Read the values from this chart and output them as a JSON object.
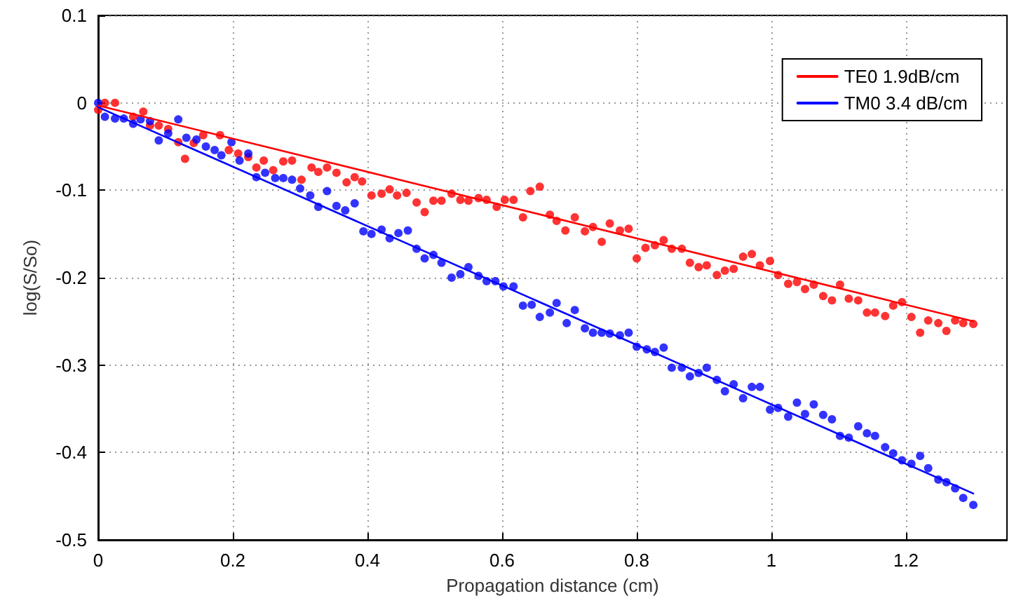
{
  "chart_data": {
    "type": "scatter",
    "xlabel": "Propagation distance (cm)",
    "ylabel": "log(S/So)",
    "xlim": [
      0,
      1.35
    ],
    "xticks": [
      0,
      0.2,
      0.4,
      0.6,
      0.8,
      1,
      1.2
    ],
    "ylim": [
      -0.5,
      0.1
    ],
    "yticks": [
      -0.5,
      -0.4,
      -0.3,
      -0.2,
      -0.1,
      0,
      0.1
    ],
    "grid": true,
    "legend": "top right",
    "marker": "circle",
    "series": [
      {
        "color": "#ff0000",
        "x": [
          0,
          0.01,
          0.025,
          0.052,
          0.067,
          0.077,
          0.09,
          0.104,
          0.119,
          0.129,
          0.142,
          0.156,
          0.181,
          0.194,
          0.208,
          0.223,
          0.235,
          0.246,
          0.26,
          0.275,
          0.288,
          0.302,
          0.317,
          0.327,
          0.34,
          0.354,
          0.369,
          0.381,
          0.392,
          0.406,
          0.421,
          0.433,
          0.444,
          0.458,
          0.473,
          0.485,
          0.498,
          0.51,
          0.525,
          0.538,
          0.55,
          0.565,
          0.577,
          0.592,
          0.604,
          0.617,
          0.631,
          0.642,
          0.656,
          0.671,
          0.681,
          0.694,
          0.708,
          0.723,
          0.735,
          0.748,
          0.76,
          0.775,
          0.788,
          0.8,
          0.813,
          0.827,
          0.84,
          0.852,
          0.867,
          0.879,
          0.892,
          0.904,
          0.919,
          0.931,
          0.944,
          0.958,
          0.971,
          0.983,
          0.998,
          1.01,
          1.025,
          1.038,
          1.05,
          1.063,
          1.077,
          1.09,
          1.102,
          1.115,
          1.129,
          1.142,
          1.154,
          1.169,
          1.181,
          1.194,
          1.208,
          1.221,
          1.233,
          1.248,
          1.26,
          1.273,
          1.285,
          1.3
        ],
        "values": [
          -0.008,
          0,
          0,
          -0.016,
          -0.01,
          -0.026,
          -0.026,
          -0.03,
          -0.045,
          -0.064,
          -0.046,
          -0.037,
          -0.037,
          -0.054,
          -0.058,
          -0.062,
          -0.074,
          -0.066,
          -0.077,
          -0.067,
          -0.066,
          -0.088,
          -0.074,
          -0.079,
          -0.074,
          -0.08,
          -0.091,
          -0.085,
          -0.09,
          -0.106,
          -0.104,
          -0.099,
          -0.106,
          -0.103,
          -0.114,
          -0.125,
          -0.112,
          -0.112,
          -0.104,
          -0.111,
          -0.112,
          -0.109,
          -0.111,
          -0.119,
          -0.111,
          -0.111,
          -0.131,
          -0.101,
          -0.096,
          -0.128,
          -0.135,
          -0.146,
          -0.131,
          -0.147,
          -0.142,
          -0.159,
          -0.138,
          -0.146,
          -0.144,
          -0.178,
          -0.166,
          -0.163,
          -0.157,
          -0.167,
          -0.167,
          -0.183,
          -0.188,
          -0.186,
          -0.197,
          -0.192,
          -0.19,
          -0.176,
          -0.173,
          -0.186,
          -0.181,
          -0.197,
          -0.207,
          -0.205,
          -0.213,
          -0.208,
          -0.221,
          -0.226,
          -0.208,
          -0.224,
          -0.226,
          -0.24,
          -0.24,
          -0.244,
          -0.232,
          -0.228,
          -0.245,
          -0.263,
          -0.249,
          -0.252,
          -0.261,
          -0.249,
          -0.252,
          -0.253
        ]
      },
      {
        "color": "#0000ff",
        "x": [
          0,
          0.01,
          0.025,
          0.038,
          0.052,
          0.063,
          0.077,
          0.09,
          0.104,
          0.119,
          0.131,
          0.146,
          0.16,
          0.173,
          0.183,
          0.198,
          0.21,
          0.223,
          0.235,
          0.248,
          0.263,
          0.275,
          0.288,
          0.3,
          0.315,
          0.327,
          0.34,
          0.354,
          0.367,
          0.381,
          0.394,
          0.406,
          0.421,
          0.433,
          0.446,
          0.46,
          0.473,
          0.485,
          0.498,
          0.51,
          0.525,
          0.538,
          0.55,
          0.565,
          0.577,
          0.59,
          0.602,
          0.617,
          0.631,
          0.644,
          0.656,
          0.671,
          0.681,
          0.696,
          0.708,
          0.723,
          0.735,
          0.748,
          0.76,
          0.775,
          0.788,
          0.8,
          0.815,
          0.827,
          0.84,
          0.852,
          0.867,
          0.879,
          0.892,
          0.904,
          0.919,
          0.931,
          0.944,
          0.958,
          0.971,
          0.983,
          0.998,
          1.01,
          1.025,
          1.038,
          1.05,
          1.063,
          1.077,
          1.09,
          1.102,
          1.115,
          1.129,
          1.142,
          1.154,
          1.169,
          1.181,
          1.194,
          1.208,
          1.221,
          1.233,
          1.248,
          1.26,
          1.273,
          1.285,
          1.3
        ],
        "values": [
          0,
          -0.016,
          -0.018,
          -0.018,
          -0.024,
          -0.019,
          -0.021,
          -0.043,
          -0.035,
          -0.019,
          -0.04,
          -0.042,
          -0.05,
          -0.054,
          -0.06,
          -0.045,
          -0.066,
          -0.058,
          -0.085,
          -0.08,
          -0.086,
          -0.086,
          -0.088,
          -0.098,
          -0.106,
          -0.119,
          -0.101,
          -0.118,
          -0.123,
          -0.115,
          -0.147,
          -0.15,
          -0.145,
          -0.155,
          -0.149,
          -0.146,
          -0.167,
          -0.178,
          -0.174,
          -0.183,
          -0.2,
          -0.196,
          -0.188,
          -0.198,
          -0.204,
          -0.204,
          -0.21,
          -0.21,
          -0.232,
          -0.231,
          -0.245,
          -0.24,
          -0.229,
          -0.252,
          -0.237,
          -0.258,
          -0.263,
          -0.263,
          -0.264,
          -0.266,
          -0.263,
          -0.279,
          -0.282,
          -0.285,
          -0.28,
          -0.303,
          -0.303,
          -0.313,
          -0.309,
          -0.303,
          -0.317,
          -0.33,
          -0.322,
          -0.338,
          -0.325,
          -0.325,
          -0.351,
          -0.349,
          -0.359,
          -0.343,
          -0.356,
          -0.345,
          -0.357,
          -0.362,
          -0.381,
          -0.383,
          -0.37,
          -0.378,
          -0.381,
          -0.394,
          -0.401,
          -0.409,
          -0.413,
          -0.404,
          -0.418,
          -0.431,
          -0.434,
          -0.441,
          -0.452,
          -0.46
        ]
      },
      {
        "type": "line",
        "name": "TE0 1.9dB/cm",
        "color": "#ff0000",
        "marker": "none",
        "line_style": "solid",
        "x": [
          0,
          1.3
        ],
        "values": [
          -0.003,
          -0.25
        ]
      },
      {
        "type": "line",
        "name": "TM0 3.4 dB/cm",
        "color": "#0000ff",
        "marker": "none",
        "line_style": "solid",
        "x": [
          0,
          1.3
        ],
        "values": [
          -0.005,
          -0.447
        ]
      }
    ]
  }
}
